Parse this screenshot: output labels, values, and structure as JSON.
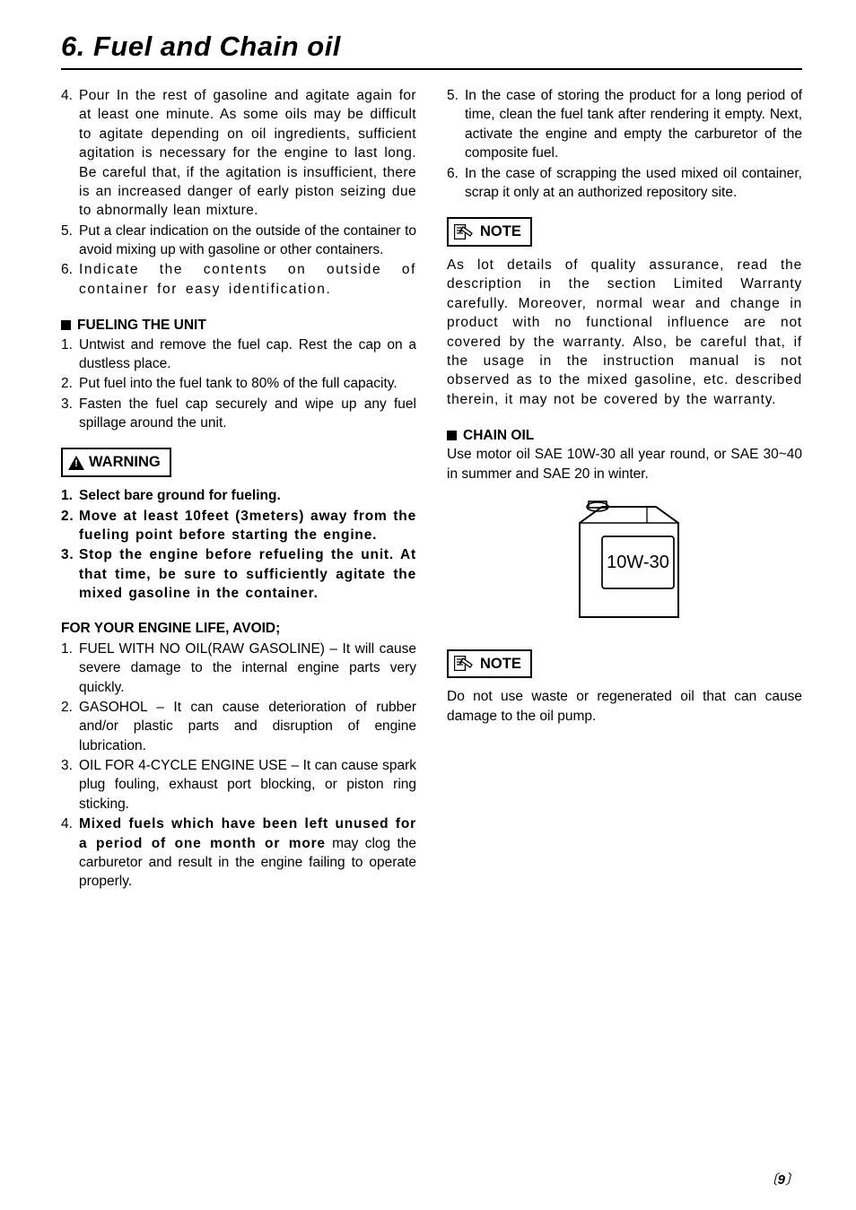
{
  "title": "6. Fuel and Chain oil",
  "left": {
    "top_items": [
      {
        "n": "4.",
        "t": "Pour In the rest of gasoline and agitate again for at least one minute. As some oils may be difficult to agitate depending on oil ingredients, sufficient agitation is necessary for the engine to last long. Be careful that, if the agitation is insufficient, there is an increased danger of early piston seizing due to abnormally lean mixture.",
        "cls": "wide2"
      },
      {
        "n": "5.",
        "t": "Put a clear indication on the outside of the container to avoid mixing up with gasoline or other containers.",
        "cls": ""
      },
      {
        "n": "6.",
        "t": "Indicate the contents on outside of container for easy identification.",
        "cls": "wide"
      }
    ],
    "fueling_head": "FUELING THE UNIT",
    "fueling_items": [
      {
        "n": "1.",
        "t": "Untwist and remove the fuel cap. Rest the cap on a dustless place."
      },
      {
        "n": "2.",
        "t": "Put fuel into the fuel tank to 80% of the full capacity."
      },
      {
        "n": "3.",
        "t": "Fasten the fuel cap securely and wipe up any fuel spillage around the unit."
      }
    ],
    "warning_label": "WARNING",
    "warning_items": [
      {
        "n": "1.",
        "t": "Select bare ground for fueling.",
        "cls": ""
      },
      {
        "n": "2.",
        "t": "Move at least 10feet (3meters) away from the fueling point before starting the engine.",
        "cls": "ls-pos05"
      },
      {
        "n": "3.",
        "t": "Stop the engine before refueling the unit. At that time, be sure to sufficiently agitate the mixed gasoline in the container.",
        "cls": "ls-pos05"
      }
    ],
    "avoid_head": "FOR YOUR ENGINE LIFE, AVOID;",
    "avoid_items": [
      {
        "n": "1.",
        "t": "FUEL WITH NO OIL(RAW GASOLINE) – It will cause severe damage to the internal engine parts very quickly."
      },
      {
        "n": "2.",
        "t": "GASOHOL – It can cause deterioration of rubber and/or plastic parts and disruption of engine lubrication."
      },
      {
        "n": "3.",
        "t": "OIL FOR 4-CYCLE ENGINE USE  – It can cause spark plug  fouling, exhaust port blocking, or piston ring sticking."
      }
    ],
    "avoid4_pre": "4.",
    "avoid4_bold": "Mixed fuels which have been left unused for a period of one month or more",
    "avoid4_rest": " may clog the carburetor and result in the engine failing to operate properly."
  },
  "right": {
    "top_items": [
      {
        "n": "5.",
        "t": "In the case of storing the product for a long period of time, clean the fuel tank after rendering it empty. Next, activate the engine and empty the carburetor of the composite fuel."
      },
      {
        "n": "6.",
        "t": "In the case of scrapping the used mixed oil container, scrap it only at an authorized repository site."
      }
    ],
    "note_label": "NOTE",
    "note1_para": "As lot details of quality assurance, read the description in the section Limited Warranty carefully. Moreover, normal wear and change in product with no functional influence are not covered by the warranty. Also, be careful that, if the usage in the instruction manual is not observed as to the mixed gasoline, etc. described therein, it may not be covered by the warranty.",
    "chain_head": "CHAIN OIL",
    "chain_para": "Use motor oil SAE 10W-30 all year round, or SAE 30~40 in summer and SAE 20 in winter.",
    "can_label": "10W-30",
    "note2_para": "Do not use waste or regenerated oil that can cause damage to the oil pump."
  },
  "page": "9"
}
